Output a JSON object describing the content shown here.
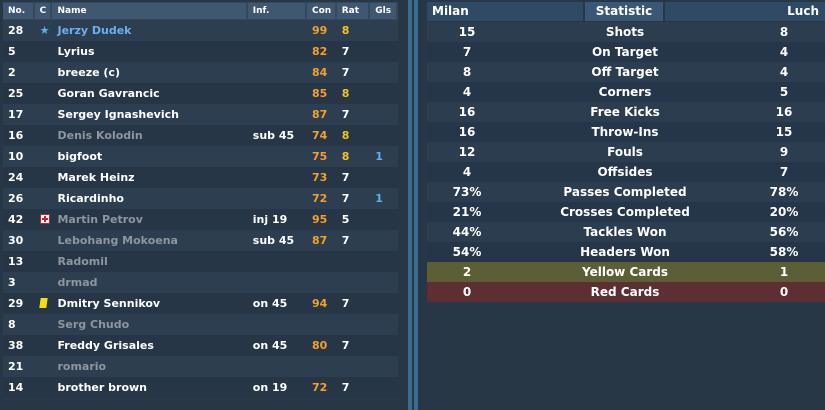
{
  "players_table": {
    "headers": {
      "no": "No.",
      "c": "C",
      "name": "Name",
      "inf": "Inf.",
      "con": "Con",
      "rat": "Rat",
      "gls": "Gls"
    },
    "rows": [
      {
        "no": "28",
        "icon": "star",
        "name": "Jerzy Dudek",
        "name_style": "blue",
        "inf": "",
        "con": "99",
        "rat": "8",
        "rat_hi": true,
        "gls": ""
      },
      {
        "no": "5",
        "icon": "",
        "name": "Lyrius",
        "name_style": "white",
        "inf": "",
        "con": "82",
        "rat": "7",
        "rat_hi": false,
        "gls": ""
      },
      {
        "no": "2",
        "icon": "",
        "name": "breeze (c)",
        "name_style": "white",
        "inf": "",
        "con": "84",
        "rat": "7",
        "rat_hi": false,
        "gls": ""
      },
      {
        "no": "25",
        "icon": "",
        "name": "Goran Gavrancic",
        "name_style": "white",
        "inf": "",
        "con": "85",
        "rat": "8",
        "rat_hi": true,
        "gls": ""
      },
      {
        "no": "17",
        "icon": "",
        "name": "Sergey Ignashevich",
        "name_style": "white",
        "inf": "",
        "con": "87",
        "rat": "7",
        "rat_hi": false,
        "gls": ""
      },
      {
        "no": "16",
        "icon": "",
        "name": "Denis Kolodin",
        "name_style": "grey",
        "inf": "sub 45",
        "con": "74",
        "rat": "8",
        "rat_hi": true,
        "gls": ""
      },
      {
        "no": "10",
        "icon": "",
        "name": "bigfoot",
        "name_style": "white",
        "inf": "",
        "con": "75",
        "rat": "8",
        "rat_hi": true,
        "gls": "1"
      },
      {
        "no": "24",
        "icon": "",
        "name": "Marek Heinz",
        "name_style": "white",
        "inf": "",
        "con": "73",
        "rat": "7",
        "rat_hi": false,
        "gls": ""
      },
      {
        "no": "26",
        "icon": "",
        "name": "Ricardinho",
        "name_style": "white",
        "inf": "",
        "con": "72",
        "rat": "7",
        "rat_hi": false,
        "gls": "1"
      },
      {
        "no": "42",
        "icon": "injury",
        "name": "Martin Petrov",
        "name_style": "grey",
        "inf": "inj 19",
        "con": "95",
        "rat": "5",
        "rat_hi": false,
        "gls": ""
      },
      {
        "no": "30",
        "icon": "",
        "name": "Lebohang Mokoena",
        "name_style": "grey",
        "inf": "sub 45",
        "con": "87",
        "rat": "7",
        "rat_hi": false,
        "gls": ""
      },
      {
        "no": "13",
        "icon": "",
        "name": "Radomil",
        "name_style": "grey",
        "inf": "",
        "con": "",
        "rat": "",
        "rat_hi": false,
        "gls": ""
      },
      {
        "no": "3",
        "icon": "",
        "name": "drmad",
        "name_style": "grey",
        "inf": "",
        "con": "",
        "rat": "",
        "rat_hi": false,
        "gls": ""
      },
      {
        "no": "29",
        "icon": "yellow-card",
        "name": "Dmitry Sennikov",
        "name_style": "white",
        "inf": "on 45",
        "con": "94",
        "rat": "7",
        "rat_hi": false,
        "gls": ""
      },
      {
        "no": "8",
        "icon": "",
        "name": "Serg Chudo",
        "name_style": "grey",
        "inf": "",
        "con": "",
        "rat": "",
        "rat_hi": false,
        "gls": ""
      },
      {
        "no": "38",
        "icon": "",
        "name": "Freddy Grisales",
        "name_style": "white",
        "inf": "on 45",
        "con": "80",
        "rat": "7",
        "rat_hi": false,
        "gls": ""
      },
      {
        "no": "21",
        "icon": "",
        "name": "romario",
        "name_style": "grey",
        "inf": "",
        "con": "",
        "rat": "",
        "rat_hi": false,
        "gls": ""
      },
      {
        "no": "14",
        "icon": "",
        "name": "brother brown",
        "name_style": "white",
        "inf": "on 19",
        "con": "72",
        "rat": "7",
        "rat_hi": false,
        "gls": ""
      }
    ]
  },
  "stats_table": {
    "headers": {
      "home": "Milan",
      "stat": "Statistic",
      "away": "Luch"
    },
    "rows": [
      {
        "home": "15",
        "stat": "Shots",
        "away": "8",
        "style": ""
      },
      {
        "home": "7",
        "stat": "On Target",
        "away": "4",
        "style": ""
      },
      {
        "home": "8",
        "stat": "Off Target",
        "away": "4",
        "style": ""
      },
      {
        "home": "4",
        "stat": "Corners",
        "away": "5",
        "style": ""
      },
      {
        "home": "16",
        "stat": "Free Kicks",
        "away": "16",
        "style": ""
      },
      {
        "home": "16",
        "stat": "Throw-Ins",
        "away": "15",
        "style": ""
      },
      {
        "home": "12",
        "stat": "Fouls",
        "away": "9",
        "style": ""
      },
      {
        "home": "4",
        "stat": "Offsides",
        "away": "7",
        "style": ""
      },
      {
        "home": "73%",
        "stat": "Passes Completed",
        "away": "78%",
        "style": ""
      },
      {
        "home": "21%",
        "stat": "Crosses Completed",
        "away": "20%",
        "style": ""
      },
      {
        "home": "44%",
        "stat": "Tackles Won",
        "away": "56%",
        "style": ""
      },
      {
        "home": "54%",
        "stat": "Headers Won",
        "away": "58%",
        "style": ""
      },
      {
        "home": "2",
        "stat": "Yellow Cards",
        "away": "1",
        "style": "yellow"
      },
      {
        "home": "0",
        "stat": "Red Cards",
        "away": "0",
        "style": "red"
      }
    ]
  },
  "colors": {
    "background": "#283746",
    "condition": "#f5a02a",
    "rating_high": "#f2c51b",
    "goals": "#5ab2f0",
    "star": "#4fb6f0",
    "yellow_row": "#5c5f35",
    "red_row": "#5d2f33"
  }
}
